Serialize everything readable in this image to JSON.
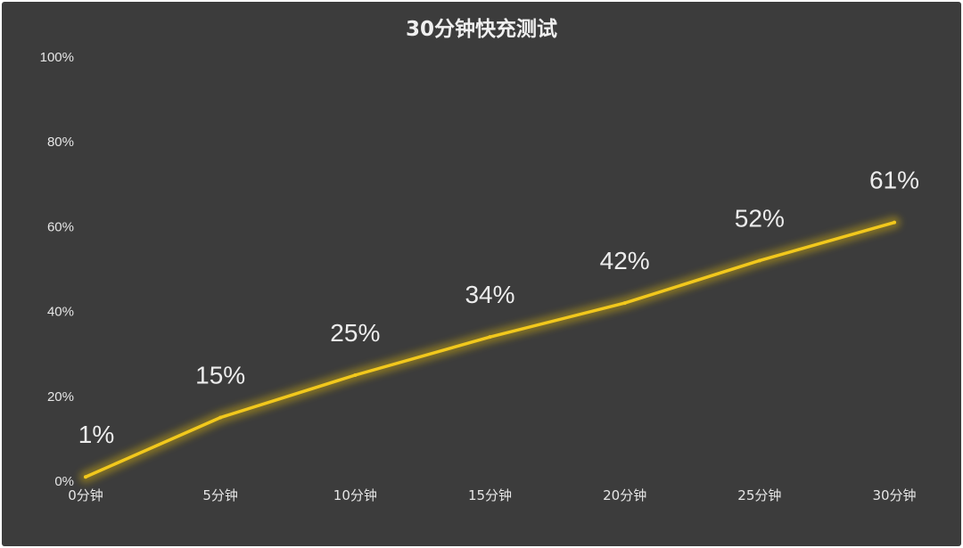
{
  "chart_data": {
    "type": "line",
    "title": "30分钟快充测试",
    "xlabel": "",
    "ylabel": "",
    "categories": [
      "0分钟",
      "5分钟",
      "10分钟",
      "15分钟",
      "20分钟",
      "25分钟",
      "30分钟"
    ],
    "series": [
      {
        "values": [
          1,
          15,
          25,
          34,
          42,
          52,
          61
        ],
        "data_labels": [
          "1%",
          "15%",
          "25%",
          "34%",
          "42%",
          "52%",
          "61%"
        ],
        "color": "#f2c81c"
      }
    ],
    "ylim": [
      0,
      100
    ],
    "y_ticks": [
      0,
      20,
      40,
      60,
      80,
      100
    ],
    "y_tick_labels": [
      "0%",
      "20%",
      "40%",
      "60%",
      "80%",
      "100%"
    ],
    "grid": false,
    "legend": "none",
    "background": "#3c3c3c",
    "text_color": "#e6e6e6"
  }
}
